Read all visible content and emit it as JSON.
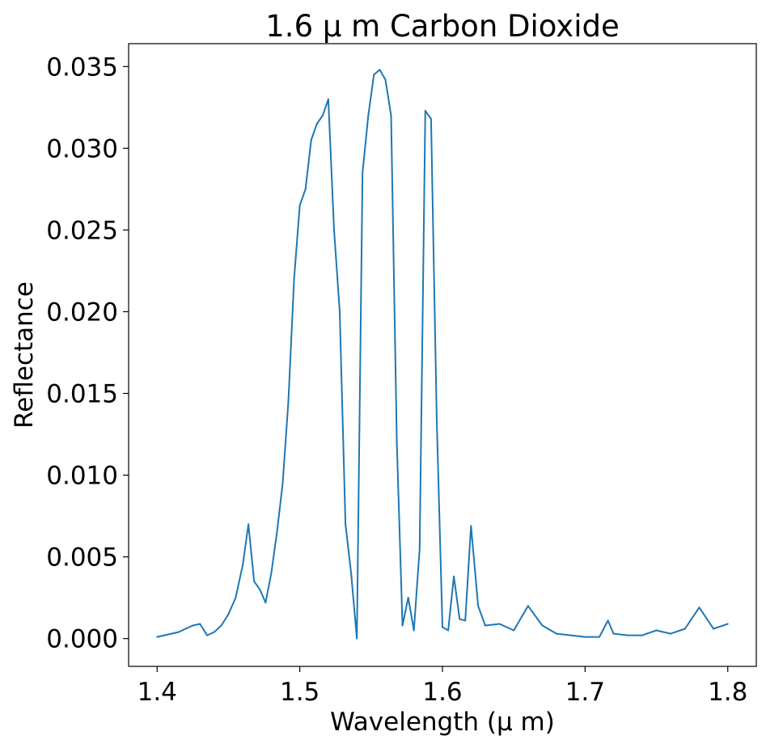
{
  "chart_data": {
    "type": "line",
    "title": "1.6 μ m Carbon Dioxide",
    "xlabel": "Wavelength (μ m)",
    "ylabel": "Reflectance",
    "xlim": [
      1.38,
      1.82
    ],
    "ylim": [
      -0.0017,
      0.0364
    ],
    "xticks": [
      1.4,
      1.5,
      1.6,
      1.7,
      1.8
    ],
    "xtick_labels": [
      "1.4",
      "1.5",
      "1.6",
      "1.7",
      "1.8"
    ],
    "yticks": [
      0.0,
      0.005,
      0.01,
      0.015,
      0.02,
      0.025,
      0.03,
      0.035
    ],
    "ytick_labels": [
      "0.000",
      "0.005",
      "0.010",
      "0.015",
      "0.020",
      "0.025",
      "0.030",
      "0.035"
    ],
    "grid": false,
    "series": [
      {
        "color": "#1f77b4",
        "x": [
          1.4,
          1.405,
          1.41,
          1.415,
          1.42,
          1.425,
          1.43,
          1.435,
          1.44,
          1.445,
          1.45,
          1.455,
          1.46,
          1.464,
          1.468,
          1.472,
          1.476,
          1.48,
          1.484,
          1.488,
          1.492,
          1.496,
          1.5,
          1.504,
          1.508,
          1.512,
          1.516,
          1.52,
          1.524,
          1.528,
          1.532,
          1.536,
          1.54,
          1.544,
          1.548,
          1.552,
          1.556,
          1.56,
          1.564,
          1.568,
          1.572,
          1.576,
          1.58,
          1.584,
          1.588,
          1.592,
          1.596,
          1.6,
          1.604,
          1.608,
          1.612,
          1.616,
          1.62,
          1.625,
          1.63,
          1.64,
          1.65,
          1.66,
          1.67,
          1.68,
          1.69,
          1.7,
          1.71,
          1.716,
          1.72,
          1.73,
          1.74,
          1.75,
          1.76,
          1.77,
          1.78,
          1.79,
          1.8
        ],
        "y": [
          0.0001,
          0.0002,
          0.0003,
          0.0004,
          0.0006,
          0.0008,
          0.0009,
          0.0002,
          0.0004,
          0.0008,
          0.0015,
          0.0025,
          0.0045,
          0.007,
          0.0035,
          0.003,
          0.0022,
          0.004,
          0.0065,
          0.0095,
          0.0145,
          0.022,
          0.0265,
          0.0275,
          0.0305,
          0.0315,
          0.032,
          0.033,
          0.025,
          0.02,
          0.007,
          0.004,
          0.0,
          0.0285,
          0.032,
          0.0345,
          0.0348,
          0.0342,
          0.032,
          0.012,
          0.0008,
          0.0025,
          0.0005,
          0.0055,
          0.0323,
          0.0318,
          0.0135,
          0.0007,
          0.0005,
          0.0038,
          0.0012,
          0.0011,
          0.0069,
          0.002,
          0.0008,
          0.0009,
          0.0005,
          0.002,
          0.0008,
          0.0003,
          0.0002,
          0.0001,
          0.0001,
          0.0011,
          0.0003,
          0.0002,
          0.0002,
          0.0005,
          0.0003,
          0.0006,
          0.0019,
          0.0006,
          0.0009
        ]
      }
    ]
  }
}
